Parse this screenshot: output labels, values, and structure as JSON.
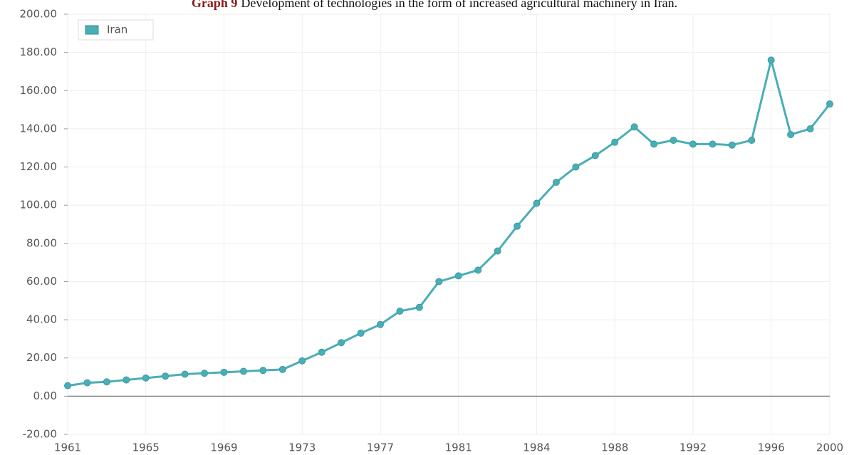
{
  "chart_data": {
    "type": "line",
    "title_label": "Graph 9",
    "title": "Development of technologies in the form of increased agricultural machinery in Iran.",
    "categories": [
      "1961",
      null,
      null,
      null,
      "1965",
      null,
      null,
      null,
      "1969",
      null,
      null,
      null,
      "1973",
      null,
      null,
      null,
      "1977",
      null,
      null,
      null,
      "1981",
      null,
      null,
      null,
      "1984",
      null,
      null,
      null,
      "1988",
      null,
      null,
      null,
      "1992",
      null,
      null,
      null,
      "1996",
      null,
      null,
      "2000"
    ],
    "series": [
      {
        "name": "Iran",
        "color": "#4aaeb6",
        "values": [
          5.5,
          7,
          7.5,
          8.5,
          9.5,
          10.5,
          11.5,
          12,
          12.5,
          13,
          13.5,
          14,
          18.5,
          23,
          28,
          33,
          37.5,
          44.5,
          46.5,
          60,
          63,
          66,
          76,
          89,
          101,
          112,
          120,
          126,
          133,
          141,
          132,
          134,
          132,
          132,
          131.5,
          134,
          176,
          137,
          140,
          153
        ]
      }
    ],
    "ylim": [
      -20,
      200
    ],
    "yticks": [
      {
        "value": -20,
        "label": "-20.00"
      },
      {
        "value": 0,
        "label": "0.00"
      },
      {
        "value": 20,
        "label": "20.00"
      },
      {
        "value": 40,
        "label": "40.00"
      },
      {
        "value": 60,
        "label": "60.00"
      },
      {
        "value": 80,
        "label": "80.00"
      },
      {
        "value": 100,
        "label": "100.00"
      },
      {
        "value": 120,
        "label": "120.00"
      },
      {
        "value": 140,
        "label": "140.00"
      },
      {
        "value": 160,
        "label": "160.00"
      },
      {
        "value": 180,
        "label": "180.00"
      },
      {
        "value": 200,
        "label": "200.00"
      }
    ],
    "grid": true,
    "legend": "top-left"
  }
}
